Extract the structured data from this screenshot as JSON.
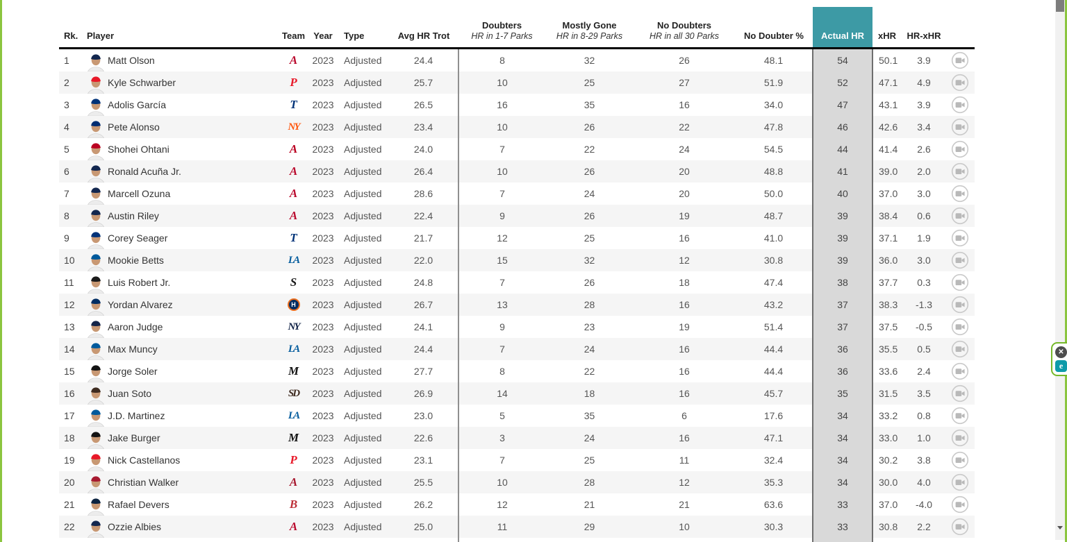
{
  "table": {
    "headers": {
      "rk": "Rk.",
      "player": "Player",
      "team": "Team",
      "year": "Year",
      "type": "Type",
      "avg_hr_trot": "Avg HR Trot",
      "doubters": {
        "title": "Doubters",
        "sub": "HR in 1-7 Parks"
      },
      "mostly_gone": {
        "title": "Mostly Gone",
        "sub": "HR in 8-29 Parks"
      },
      "no_doubters": {
        "title": "No Doubters",
        "sub": "HR in all 30 Parks"
      },
      "no_doubter_pct": "No Doubter %",
      "actual_hr": "Actual HR",
      "xhr": "xHR",
      "hr_xhr": "HR-xHR"
    },
    "rows": [
      {
        "rank": "1",
        "player": "Matt Olson",
        "team": "ATL",
        "year": "2023",
        "type": "Adjusted",
        "avg_hr_trot": "24.4",
        "doubters": "8",
        "mostly_gone": "32",
        "no_doubters": "26",
        "no_doubter_pct": "48.1",
        "actual_hr": "54",
        "xhr": "50.1",
        "hr_xhr": "3.9"
      },
      {
        "rank": "2",
        "player": "Kyle Schwarber",
        "team": "PHI",
        "year": "2023",
        "type": "Adjusted",
        "avg_hr_trot": "25.7",
        "doubters": "10",
        "mostly_gone": "25",
        "no_doubters": "27",
        "no_doubter_pct": "51.9",
        "actual_hr": "52",
        "xhr": "47.1",
        "hr_xhr": "4.9"
      },
      {
        "rank": "3",
        "player": "Adolis García",
        "team": "TEX",
        "year": "2023",
        "type": "Adjusted",
        "avg_hr_trot": "26.5",
        "doubters": "16",
        "mostly_gone": "35",
        "no_doubters": "16",
        "no_doubter_pct": "34.0",
        "actual_hr": "47",
        "xhr": "43.1",
        "hr_xhr": "3.9"
      },
      {
        "rank": "4",
        "player": "Pete Alonso",
        "team": "NYM",
        "year": "2023",
        "type": "Adjusted",
        "avg_hr_trot": "23.4",
        "doubters": "10",
        "mostly_gone": "26",
        "no_doubters": "22",
        "no_doubter_pct": "47.8",
        "actual_hr": "46",
        "xhr": "42.6",
        "hr_xhr": "3.4"
      },
      {
        "rank": "5",
        "player": "Shohei Ohtani",
        "team": "LAA",
        "year": "2023",
        "type": "Adjusted",
        "avg_hr_trot": "24.0",
        "doubters": "7",
        "mostly_gone": "22",
        "no_doubters": "24",
        "no_doubter_pct": "54.5",
        "actual_hr": "44",
        "xhr": "41.4",
        "hr_xhr": "2.6"
      },
      {
        "rank": "6",
        "player": "Ronald Acuña Jr.",
        "team": "ATL",
        "year": "2023",
        "type": "Adjusted",
        "avg_hr_trot": "26.4",
        "doubters": "10",
        "mostly_gone": "26",
        "no_doubters": "20",
        "no_doubter_pct": "48.8",
        "actual_hr": "41",
        "xhr": "39.0",
        "hr_xhr": "2.0"
      },
      {
        "rank": "7",
        "player": "Marcell Ozuna",
        "team": "ATL",
        "year": "2023",
        "type": "Adjusted",
        "avg_hr_trot": "28.6",
        "doubters": "7",
        "mostly_gone": "24",
        "no_doubters": "20",
        "no_doubter_pct": "50.0",
        "actual_hr": "40",
        "xhr": "37.0",
        "hr_xhr": "3.0"
      },
      {
        "rank": "8",
        "player": "Austin Riley",
        "team": "ATL",
        "year": "2023",
        "type": "Adjusted",
        "avg_hr_trot": "22.4",
        "doubters": "9",
        "mostly_gone": "26",
        "no_doubters": "19",
        "no_doubter_pct": "48.7",
        "actual_hr": "39",
        "xhr": "38.4",
        "hr_xhr": "0.6"
      },
      {
        "rank": "9",
        "player": "Corey Seager",
        "team": "TEX",
        "year": "2023",
        "type": "Adjusted",
        "avg_hr_trot": "21.7",
        "doubters": "12",
        "mostly_gone": "25",
        "no_doubters": "16",
        "no_doubter_pct": "41.0",
        "actual_hr": "39",
        "xhr": "37.1",
        "hr_xhr": "1.9"
      },
      {
        "rank": "10",
        "player": "Mookie Betts",
        "team": "LAD",
        "year": "2023",
        "type": "Adjusted",
        "avg_hr_trot": "22.0",
        "doubters": "15",
        "mostly_gone": "32",
        "no_doubters": "12",
        "no_doubter_pct": "30.8",
        "actual_hr": "39",
        "xhr": "36.0",
        "hr_xhr": "3.0"
      },
      {
        "rank": "11",
        "player": "Luis Robert Jr.",
        "team": "CWS",
        "year": "2023",
        "type": "Adjusted",
        "avg_hr_trot": "24.8",
        "doubters": "7",
        "mostly_gone": "26",
        "no_doubters": "18",
        "no_doubter_pct": "47.4",
        "actual_hr": "38",
        "xhr": "37.7",
        "hr_xhr": "0.3"
      },
      {
        "rank": "12",
        "player": "Yordan Alvarez",
        "team": "HOU",
        "year": "2023",
        "type": "Adjusted",
        "avg_hr_trot": "26.7",
        "doubters": "13",
        "mostly_gone": "28",
        "no_doubters": "16",
        "no_doubter_pct": "43.2",
        "actual_hr": "37",
        "xhr": "38.3",
        "hr_xhr": "-1.3"
      },
      {
        "rank": "13",
        "player": "Aaron Judge",
        "team": "NYY",
        "year": "2023",
        "type": "Adjusted",
        "avg_hr_trot": "24.1",
        "doubters": "9",
        "mostly_gone": "23",
        "no_doubters": "19",
        "no_doubter_pct": "51.4",
        "actual_hr": "37",
        "xhr": "37.5",
        "hr_xhr": "-0.5"
      },
      {
        "rank": "14",
        "player": "Max Muncy",
        "team": "LAD",
        "year": "2023",
        "type": "Adjusted",
        "avg_hr_trot": "24.4",
        "doubters": "7",
        "mostly_gone": "24",
        "no_doubters": "16",
        "no_doubter_pct": "44.4",
        "actual_hr": "36",
        "xhr": "35.5",
        "hr_xhr": "0.5"
      },
      {
        "rank": "15",
        "player": "Jorge Soler",
        "team": "MIA",
        "year": "2023",
        "type": "Adjusted",
        "avg_hr_trot": "27.7",
        "doubters": "8",
        "mostly_gone": "22",
        "no_doubters": "16",
        "no_doubter_pct": "44.4",
        "actual_hr": "36",
        "xhr": "33.6",
        "hr_xhr": "2.4"
      },
      {
        "rank": "16",
        "player": "Juan Soto",
        "team": "SD",
        "year": "2023",
        "type": "Adjusted",
        "avg_hr_trot": "26.9",
        "doubters": "14",
        "mostly_gone": "18",
        "no_doubters": "16",
        "no_doubter_pct": "45.7",
        "actual_hr": "35",
        "xhr": "31.5",
        "hr_xhr": "3.5"
      },
      {
        "rank": "17",
        "player": "J.D. Martinez",
        "team": "LAD",
        "year": "2023",
        "type": "Adjusted",
        "avg_hr_trot": "23.0",
        "doubters": "5",
        "mostly_gone": "35",
        "no_doubters": "6",
        "no_doubter_pct": "17.6",
        "actual_hr": "34",
        "xhr": "33.2",
        "hr_xhr": "0.8"
      },
      {
        "rank": "18",
        "player": "Jake Burger",
        "team": "MIA",
        "year": "2023",
        "type": "Adjusted",
        "avg_hr_trot": "22.6",
        "doubters": "3",
        "mostly_gone": "24",
        "no_doubters": "16",
        "no_doubter_pct": "47.1",
        "actual_hr": "34",
        "xhr": "33.0",
        "hr_xhr": "1.0"
      },
      {
        "rank": "19",
        "player": "Nick Castellanos",
        "team": "PHI",
        "year": "2023",
        "type": "Adjusted",
        "avg_hr_trot": "23.1",
        "doubters": "7",
        "mostly_gone": "25",
        "no_doubters": "11",
        "no_doubter_pct": "32.4",
        "actual_hr": "34",
        "xhr": "30.2",
        "hr_xhr": "3.8"
      },
      {
        "rank": "20",
        "player": "Christian Walker",
        "team": "ARI",
        "year": "2023",
        "type": "Adjusted",
        "avg_hr_trot": "25.5",
        "doubters": "10",
        "mostly_gone": "28",
        "no_doubters": "12",
        "no_doubter_pct": "35.3",
        "actual_hr": "34",
        "xhr": "30.0",
        "hr_xhr": "4.0"
      },
      {
        "rank": "21",
        "player": "Rafael Devers",
        "team": "BOS",
        "year": "2023",
        "type": "Adjusted",
        "avg_hr_trot": "26.2",
        "doubters": "12",
        "mostly_gone": "21",
        "no_doubters": "21",
        "no_doubter_pct": "63.6",
        "actual_hr": "33",
        "xhr": "37.0",
        "hr_xhr": "-4.0"
      },
      {
        "rank": "22",
        "player": "Ozzie Albies",
        "team": "ATL",
        "year": "2023",
        "type": "Adjusted",
        "avg_hr_trot": "25.0",
        "doubters": "11",
        "mostly_gone": "29",
        "no_doubters": "10",
        "no_doubter_pct": "30.3",
        "actual_hr": "33",
        "xhr": "30.8",
        "hr_xhr": "2.2"
      }
    ],
    "partial_next_row": {
      "team": "GEN"
    }
  },
  "teams": {
    "ATL": {
      "glyph": "A",
      "color": "#ba0c2f",
      "cap": "#13274f",
      "two": false,
      "badge": false
    },
    "PHI": {
      "glyph": "P",
      "color": "#e81828",
      "cap": "#e81828",
      "two": false,
      "badge": false
    },
    "TEX": {
      "glyph": "T",
      "color": "#003278",
      "cap": "#003278",
      "two": false,
      "badge": false
    },
    "NYM": {
      "glyph": "NY",
      "color": "#ff5910",
      "cap": "#002d72",
      "two": true,
      "badge": false
    },
    "LAA": {
      "glyph": "A",
      "color": "#ba0021",
      "cap": "#ba0021",
      "two": false,
      "badge": false
    },
    "LAD": {
      "glyph": "LA",
      "color": "#005a9c",
      "cap": "#005a9c",
      "two": true,
      "badge": false
    },
    "CWS": {
      "glyph": "S",
      "color": "#1a1a1a",
      "cap": "#1a1a1a",
      "two": false,
      "badge": false
    },
    "HOU": {
      "glyph": "H",
      "color": "#002d62",
      "cap": "#002d62",
      "two": false,
      "badge": true
    },
    "NYY": {
      "glyph": "NY",
      "color": "#132448",
      "cap": "#132448",
      "two": true,
      "badge": false
    },
    "MIA": {
      "glyph": "M",
      "color": "#131313",
      "cap": "#131313",
      "two": false,
      "badge": false
    },
    "SD": {
      "glyph": "SD",
      "color": "#3e2b20",
      "cap": "#3e2b20",
      "two": true,
      "badge": false
    },
    "ARI": {
      "glyph": "A",
      "color": "#a71930",
      "cap": "#a71930",
      "two": false,
      "badge": false
    },
    "BOS": {
      "glyph": "B",
      "color": "#bd3039",
      "cap": "#0c2340",
      "two": false,
      "badge": false
    },
    "GEN": {
      "glyph": "",
      "color": "#333333",
      "cap": "#1a1a1a",
      "two": false,
      "badge": false
    }
  },
  "colors": {
    "accent_teal": "#3d9aa5",
    "highlight_column_bg": "#d9d9d9",
    "stripe_row_bg": "#f5f5f5",
    "header_rule": "#000000",
    "frame_green": "#8bc53f",
    "scroll_track": "#f1f1f1",
    "scroll_thumb": "#7d7d7d"
  },
  "widgets": {
    "extension": {
      "close_glyph": "✕",
      "badge_letter": "e",
      "badge_color": "#0e9ba9",
      "border_color": "#76b82a"
    }
  }
}
